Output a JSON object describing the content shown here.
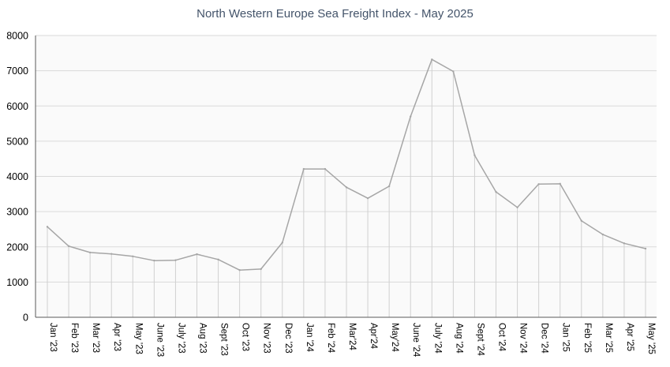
{
  "chart_data": {
    "type": "line",
    "title": "North Western Europe Sea Freight Index - May 2025",
    "xlabel": "",
    "ylabel": "",
    "ylim": [
      0,
      8000
    ],
    "yticks": [
      "0",
      "1000",
      "2000",
      "3000",
      "4000",
      "5000",
      "6000",
      "7000",
      "8000"
    ],
    "grid": true,
    "drop_lines": true,
    "legend": "none",
    "categories": [
      "Jan '23",
      "Feb '23",
      "Mar '23",
      "Apr '23",
      "May '23",
      "June '23",
      "July '23",
      "Aug '23",
      "Sept '23",
      "Oct '23",
      "Nov '23",
      "Dec '23",
      "Jan '24",
      "Feb '24",
      "Mar'24",
      "Apr'24",
      "May'24",
      "June '24",
      "July '24",
      "Aug '24",
      "Sept '24",
      "Oct '24",
      "Nov '24",
      "Dec '24",
      "Jan '25",
      "Feb '25",
      "Mar '25",
      "Apr '25",
      "May '25"
    ],
    "series": [
      {
        "values": [
          2570,
          2020,
          1840,
          1800,
          1730,
          1610,
          1620,
          1790,
          1640,
          1340,
          1370,
          2120,
          4210,
          4210,
          3690,
          3380,
          3720,
          5700,
          7320,
          6980,
          4600,
          3560,
          3120,
          3780,
          3790,
          2740,
          2350,
          2100,
          1950
        ],
        "color": "#a6a6a6"
      }
    ],
    "colors": {
      "line": "#a6a6a6",
      "grid": "#d9d9d9",
      "axis": "#595959",
      "plot_bg": "#fafafa",
      "title": "#44546a"
    }
  }
}
